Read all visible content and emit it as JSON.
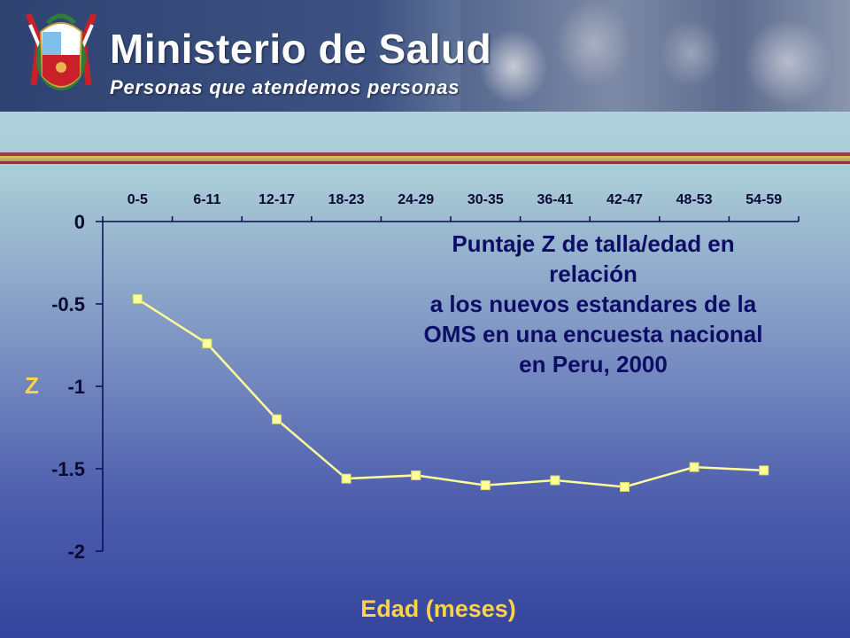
{
  "header": {
    "title": "Ministerio de Salud",
    "slogan": "Personas que atendemos personas",
    "coat_of_arms_icon": "peru-coat-of-arms-icon"
  },
  "colors": {
    "title_text": "#0d0d66",
    "axis_label": "#ffd24a",
    "series_line": "#ffff99",
    "axis": "#0a0a55"
  },
  "chart_data": {
    "type": "line",
    "title_lines": [
      "Puntaje Z de talla/edad en",
      "relación",
      "a los nuevos estandares de la",
      "OMS en una encuesta nacional",
      "en Peru, 2000"
    ],
    "xlabel": "Edad (meses)",
    "ylabel": "Z",
    "categories": [
      "0-5",
      "6-11",
      "12-17",
      "18-23",
      "24-29",
      "30-35",
      "36-41",
      "42-47",
      "48-53",
      "54-59"
    ],
    "x_axis_position": "top",
    "yticks": [
      0,
      -0.5,
      -1,
      -1.5,
      -2
    ],
    "ytick_labels": [
      "0",
      "-0.5",
      "-1",
      "-1.5",
      "-2"
    ],
    "ylim": [
      -2,
      0
    ],
    "grid": false,
    "series": [
      {
        "values": [
          -0.47,
          -0.74,
          -1.2,
          -1.56,
          -1.54,
          -1.6,
          -1.57,
          -1.61,
          -1.49,
          -1.51
        ]
      }
    ]
  }
}
